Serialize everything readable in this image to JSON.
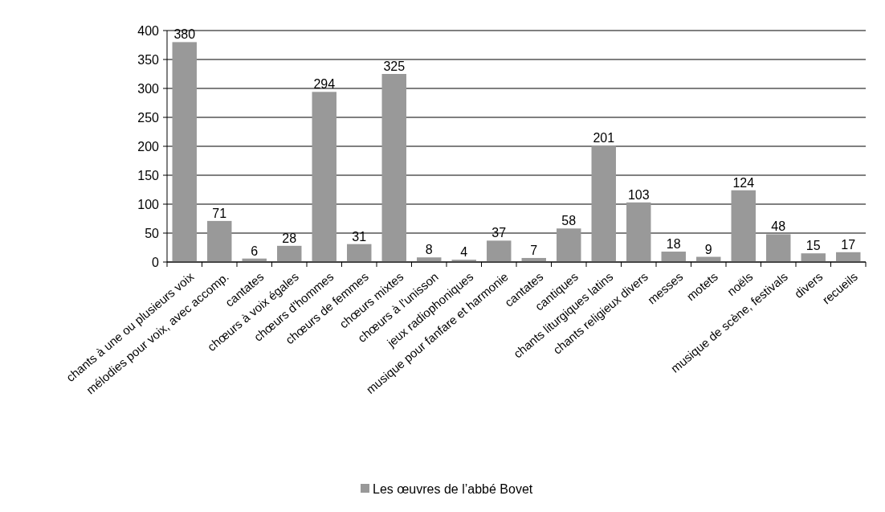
{
  "chart_data": {
    "type": "bar",
    "categories": [
      "chants à une ou plusieurs voix",
      "mélodies pour voix, avec accomp.",
      "cantates",
      "chœurs à voix égales",
      "chœurs d'hommes",
      "chœurs de femmes",
      "chœurs mixtes",
      "chœurs à l'unisson",
      "jeux radiophoniques",
      "musique pour fanfare et harmonie",
      "cantates",
      "cantiques",
      "chants liturgiques latins",
      "chants religieux divers",
      "messes",
      "motets",
      "noëls",
      "musique de scène, festivals",
      "divers",
      "recueils"
    ],
    "series": [
      {
        "name": "Les œuvres de l’abbé Bovet",
        "color": "#999999",
        "values": [
          380,
          71,
          6,
          28,
          294,
          31,
          325,
          8,
          4,
          37,
          7,
          58,
          201,
          103,
          18,
          9,
          124,
          48,
          15,
          17
        ]
      }
    ],
    "ylim": [
      0,
      400
    ],
    "yticks": [
      0,
      50,
      100,
      150,
      200,
      250,
      300,
      350,
      400
    ],
    "grid": "y",
    "legend": "bottom",
    "data_labels": true
  }
}
